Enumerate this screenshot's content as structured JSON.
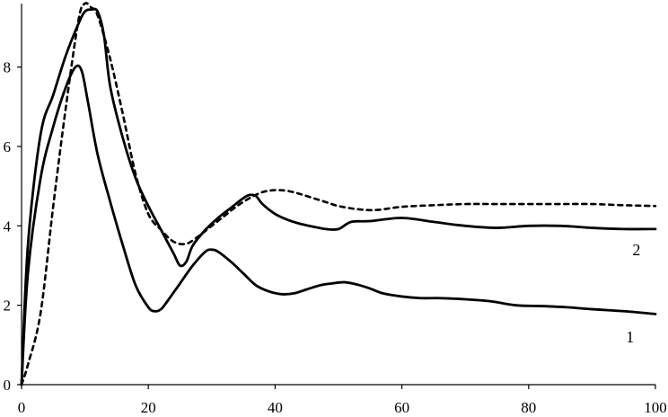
{
  "chart_data": {
    "type": "line",
    "title": "",
    "xlabel": "",
    "ylabel": "",
    "xlim": [
      0,
      100
    ],
    "ylim": [
      0,
      9.6
    ],
    "grid": false,
    "x_ticks": [
      0,
      20,
      40,
      60,
      80,
      100
    ],
    "y_ticks": [
      0,
      2,
      4,
      6,
      8
    ],
    "x_tick_labels": [
      "0",
      "20",
      "40",
      "60",
      "80",
      "100"
    ],
    "y_tick_labels": [
      "0",
      "2",
      "4",
      "6",
      "8"
    ],
    "series": [
      {
        "name": "1",
        "style": "solid",
        "color": "#000000",
        "x": [
          0,
          1,
          3,
          5,
          7,
          8.5,
          9.5,
          10.5,
          12,
          14,
          16,
          18,
          20,
          21,
          22,
          23,
          25,
          27,
          29,
          30,
          31,
          33,
          35,
          37,
          39,
          41,
          43,
          45,
          47,
          49,
          51,
          53,
          55,
          57,
          60,
          63,
          66,
          70,
          74,
          78,
          82,
          86,
          90,
          95,
          100
        ],
        "y": [
          0,
          2.8,
          5.2,
          6.5,
          7.5,
          8.0,
          7.9,
          7.1,
          5.8,
          4.6,
          3.5,
          2.5,
          1.95,
          1.85,
          1.9,
          2.1,
          2.55,
          3.0,
          3.35,
          3.4,
          3.35,
          3.1,
          2.8,
          2.5,
          2.35,
          2.28,
          2.3,
          2.4,
          2.5,
          2.55,
          2.58,
          2.52,
          2.42,
          2.3,
          2.22,
          2.18,
          2.18,
          2.15,
          2.1,
          2.0,
          1.98,
          1.95,
          1.9,
          1.85,
          1.78
        ]
      },
      {
        "name": "2",
        "style": "solid",
        "color": "#000000",
        "x": [
          0,
          1,
          3,
          5,
          7,
          9,
          10,
          11,
          12,
          13,
          14,
          16,
          18,
          20,
          22,
          24,
          25,
          26,
          27,
          29,
          31,
          33,
          35,
          36,
          37,
          38,
          40,
          42,
          44,
          46,
          48,
          50,
          52,
          55,
          60,
          65,
          70,
          75,
          80,
          85,
          90,
          95,
          100
        ],
        "y": [
          0,
          3.5,
          6.3,
          7.3,
          8.3,
          9.1,
          9.4,
          9.45,
          9.4,
          8.8,
          7.5,
          6.2,
          5.2,
          4.5,
          3.9,
          3.3,
          3.0,
          3.1,
          3.5,
          3.9,
          4.2,
          4.45,
          4.7,
          4.78,
          4.75,
          4.55,
          4.3,
          4.15,
          4.05,
          3.98,
          3.92,
          3.92,
          4.1,
          4.12,
          4.2,
          4.1,
          4.0,
          3.95,
          4.0,
          4.0,
          3.95,
          3.92,
          3.92
        ]
      },
      {
        "name": "",
        "style": "dashed",
        "color": "#000000",
        "x": [
          0,
          1,
          3,
          5,
          7,
          9,
          10,
          11,
          12,
          14,
          16,
          18,
          20,
          22,
          24,
          26,
          28,
          30,
          32,
          34,
          36,
          38,
          40,
          42,
          44,
          46,
          48,
          50,
          53,
          56,
          60,
          65,
          70,
          75,
          80,
          85,
          90,
          95,
          100
        ],
        "y": [
          0,
          0.5,
          1.8,
          4.5,
          7.0,
          9.2,
          9.6,
          9.5,
          9.3,
          8.2,
          6.8,
          5.3,
          4.3,
          3.9,
          3.6,
          3.55,
          3.75,
          4.0,
          4.25,
          4.5,
          4.7,
          4.85,
          4.9,
          4.88,
          4.8,
          4.7,
          4.6,
          4.5,
          4.42,
          4.4,
          4.48,
          4.52,
          4.55,
          4.55,
          4.55,
          4.55,
          4.55,
          4.52,
          4.5
        ]
      }
    ],
    "annotations": [
      {
        "text": "2",
        "x": 97,
        "y": 3.4
      },
      {
        "text": "1",
        "x": 96,
        "y": 1.2
      }
    ]
  }
}
